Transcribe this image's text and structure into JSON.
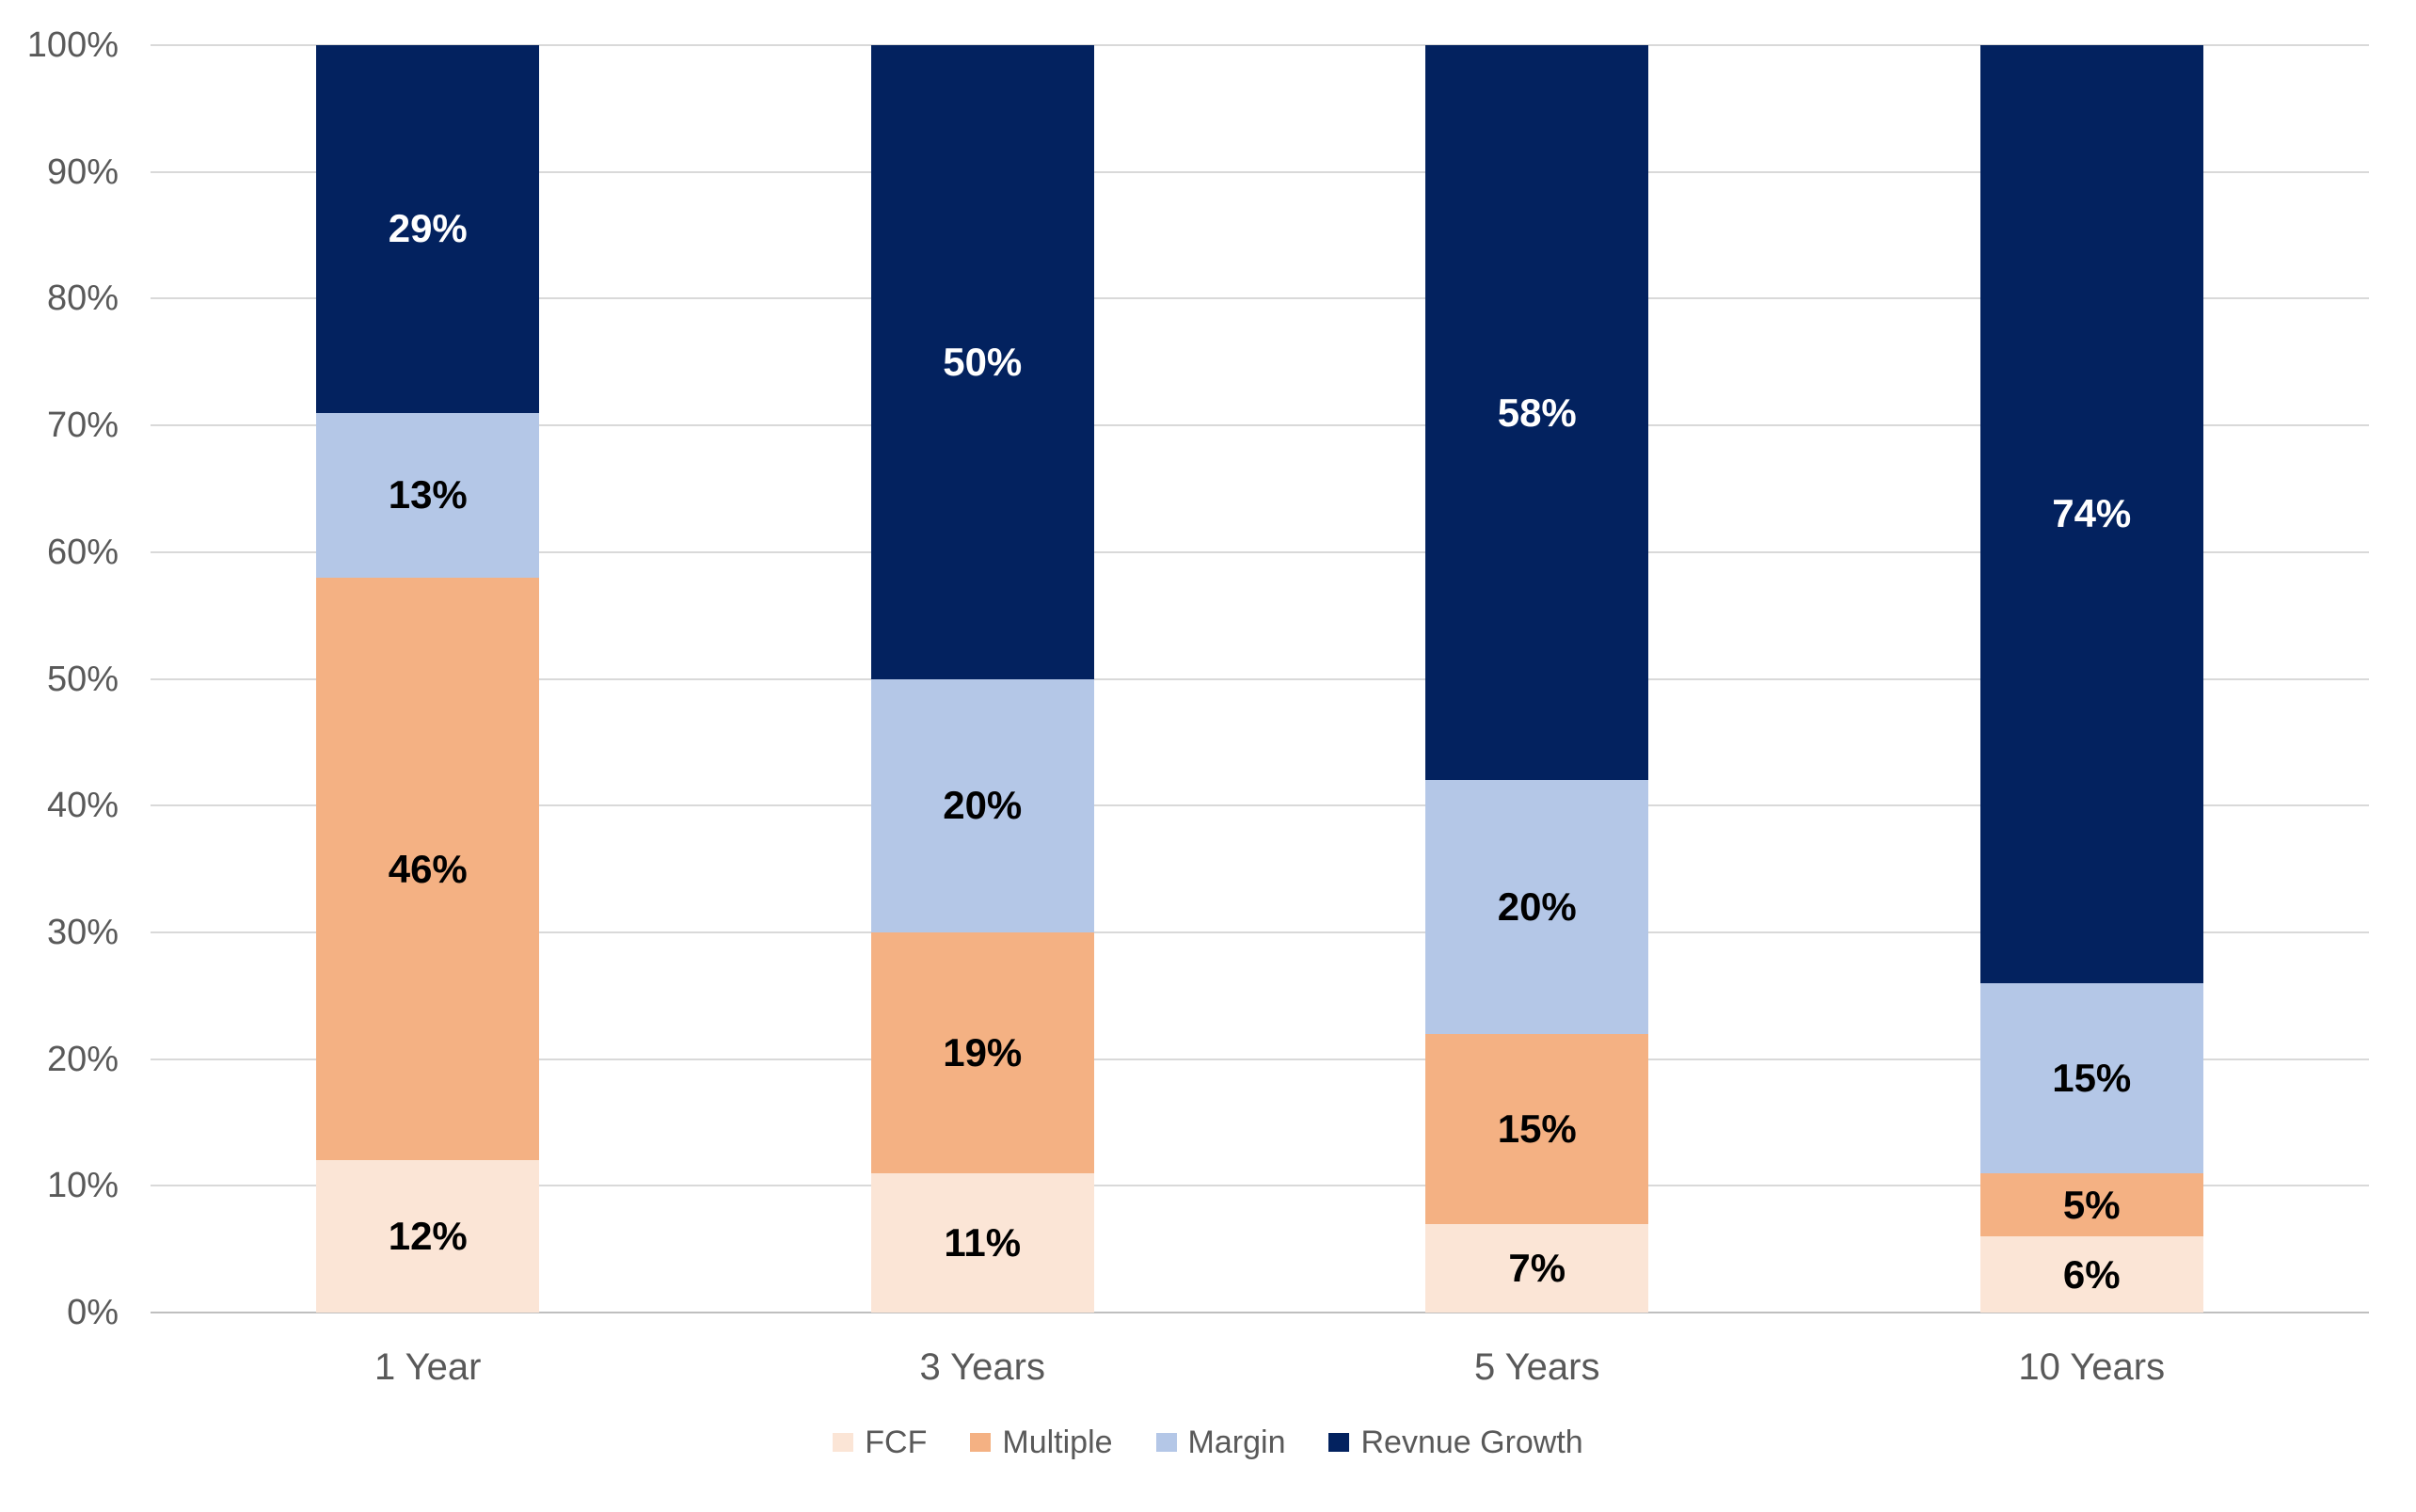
{
  "chart_data": {
    "type": "bar",
    "variant": "100-percent-stacked-column",
    "title": "",
    "xlabel": "",
    "ylabel": "",
    "categories": [
      "1 Year",
      "3 Years",
      "5 Years",
      "10 Years"
    ],
    "series": [
      {
        "name": "FCF",
        "color": "#FBE5D6",
        "label_color": "#000000",
        "values": [
          12,
          11,
          7,
          6
        ],
        "labels": [
          "12%",
          "11%",
          "7%",
          "6%"
        ]
      },
      {
        "name": "Multiple",
        "color": "#F4B183",
        "label_color": "#000000",
        "values": [
          46,
          19,
          15,
          5
        ],
        "labels": [
          "46%",
          "19%",
          "15%",
          "5%"
        ]
      },
      {
        "name": "Margin",
        "color": "#B4C7E7",
        "label_color": "#000000",
        "values": [
          13,
          20,
          20,
          15
        ],
        "labels": [
          "13%",
          "20%",
          "20%",
          "15%"
        ]
      },
      {
        "name": "Revnue Growth",
        "color": "#03225F",
        "label_color": "#FFFFFF",
        "values": [
          29,
          50,
          58,
          74
        ],
        "labels": [
          "29%",
          "50%",
          "58%",
          "74%"
        ]
      }
    ],
    "y_axis": {
      "min": 0,
      "max": 100,
      "tick_values": [
        0,
        10,
        20,
        30,
        40,
        50,
        60,
        70,
        80,
        90,
        100
      ],
      "tick_labels": [
        "0%",
        "10%",
        "20%",
        "30%",
        "40%",
        "50%",
        "60%",
        "70%",
        "80%",
        "90%",
        "100%"
      ]
    },
    "grid": true,
    "legend_position": "bottom",
    "colors": {
      "gridline": "#D9D9D9",
      "axis_line": "#BFBFBF",
      "tick_text": "#595959",
      "category_text": "#595959",
      "legend_text": "#595959",
      "background": "#FFFFFF"
    }
  }
}
